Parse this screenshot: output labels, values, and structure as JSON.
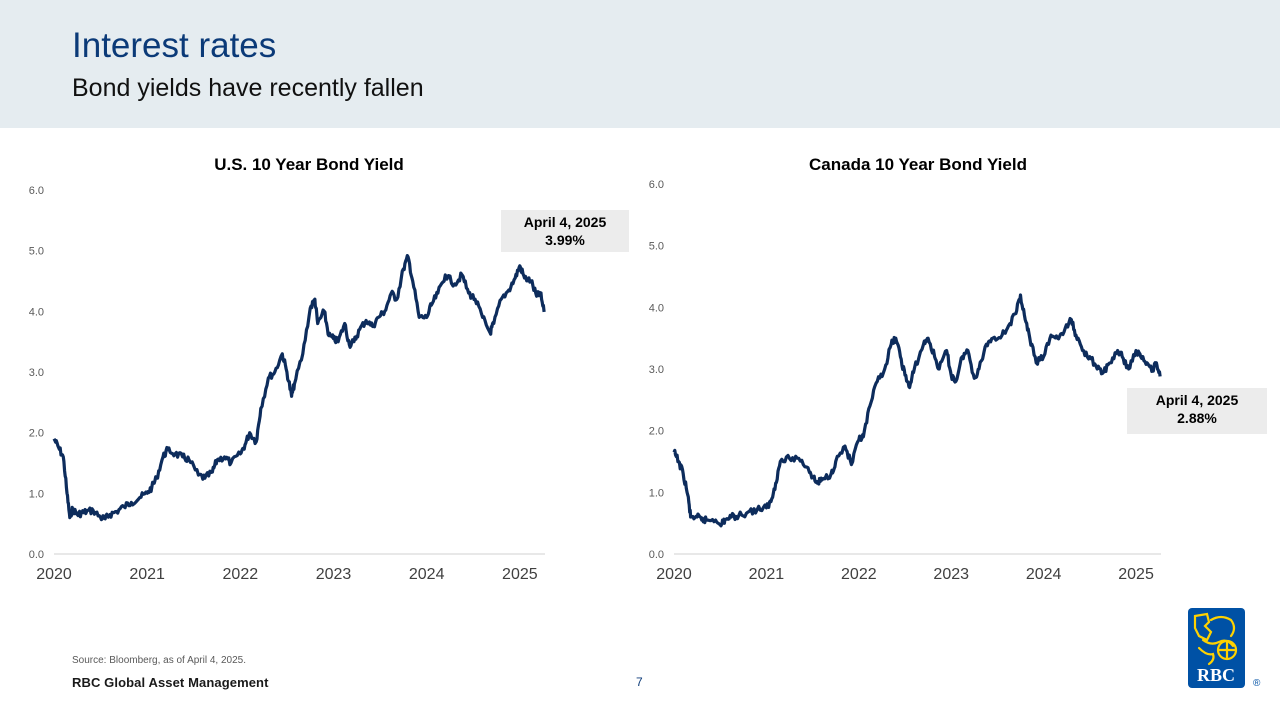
{
  "header": {
    "title": "Interest rates",
    "subtitle": "Bond yields have recently fallen"
  },
  "footer": {
    "source": "Source: Bloomberg, as of April 4, 2025.",
    "brand": "RBC Global Asset Management",
    "page_number": "7",
    "logo_text": "RBC",
    "logo_mark": "®"
  },
  "colors": {
    "header_bg": "#e5ecf0",
    "title": "#0b3a78",
    "series_line": "#0d2c5c",
    "callout_bg": "#ececec",
    "logo_blue": "#0051a5",
    "logo_gold": "#ffd200"
  },
  "chart_data": [
    {
      "type": "line",
      "title": "U.S. 10 Year Bond Yield",
      "xlabel": "",
      "ylabel": "",
      "ylim": [
        0,
        6
      ],
      "xlim": [
        2020.0,
        2025.27
      ],
      "yticks": [
        "0.0",
        "1.0",
        "2.0",
        "3.0",
        "4.0",
        "5.0",
        "6.0"
      ],
      "xticks": [
        "2020",
        "2021",
        "2022",
        "2023",
        "2024",
        "2025"
      ],
      "grid": false,
      "legend": "none",
      "annotation": {
        "date": "April 4, 2025",
        "value": "3.99%"
      },
      "series": [
        {
          "x": [
            2020.0,
            2020.05,
            2020.1,
            2020.14,
            2020.17,
            2020.2,
            2020.25,
            2020.3,
            2020.35,
            2020.42,
            2020.5,
            2020.55,
            2020.6,
            2020.67,
            2020.75,
            2020.83,
            2020.92,
            2021.0,
            2021.05,
            2021.1,
            2021.17,
            2021.22,
            2021.3,
            2021.38,
            2021.45,
            2021.55,
            2021.62,
            2021.7,
            2021.75,
            2021.83,
            2021.9,
            2022.0,
            2022.05,
            2022.1,
            2022.17,
            2022.22,
            2022.3,
            2022.37,
            2022.45,
            2022.5,
            2022.55,
            2022.58,
            2022.67,
            2022.75,
            2022.8,
            2022.83,
            2022.9,
            2022.95,
            2023.0,
            2023.05,
            2023.12,
            2023.17,
            2023.22,
            2023.28,
            2023.35,
            2023.42,
            2023.48,
            2023.55,
            2023.62,
            2023.68,
            2023.75,
            2023.8,
            2023.85,
            2023.92,
            2024.0,
            2024.05,
            2024.12,
            2024.2,
            2024.3,
            2024.38,
            2024.45,
            2024.52,
            2024.6,
            2024.68,
            2024.72,
            2024.8,
            2024.88,
            2024.95,
            2025.0,
            2025.05,
            2025.12,
            2025.18,
            2025.22,
            2025.26
          ],
          "y": [
            1.9,
            1.75,
            1.6,
            1.0,
            0.6,
            0.75,
            0.65,
            0.68,
            0.7,
            0.72,
            0.6,
            0.58,
            0.65,
            0.7,
            0.78,
            0.85,
            0.93,
            1.0,
            1.1,
            1.25,
            1.6,
            1.72,
            1.65,
            1.6,
            1.55,
            1.3,
            1.25,
            1.35,
            1.55,
            1.6,
            1.5,
            1.65,
            1.8,
            2.0,
            1.85,
            2.4,
            2.9,
            3.0,
            3.3,
            3.0,
            2.6,
            2.8,
            3.3,
            4.05,
            4.2,
            3.8,
            4.0,
            3.6,
            3.55,
            3.5,
            3.8,
            3.45,
            3.5,
            3.7,
            3.85,
            3.75,
            3.9,
            4.0,
            4.3,
            4.2,
            4.7,
            4.9,
            4.5,
            3.9,
            3.9,
            4.1,
            4.3,
            4.6,
            4.45,
            4.6,
            4.3,
            4.2,
            3.9,
            3.65,
            3.8,
            4.2,
            4.35,
            4.55,
            4.75,
            4.55,
            4.5,
            4.25,
            4.3,
            3.99
          ]
        }
      ]
    },
    {
      "type": "line",
      "title": "Canada 10 Year Bond Yield",
      "xlabel": "",
      "ylabel": "",
      "ylim": [
        0,
        6
      ],
      "xlim": [
        2020.0,
        2025.27
      ],
      "yticks": [
        "0.0",
        "1.0",
        "2.0",
        "3.0",
        "4.0",
        "5.0",
        "6.0"
      ],
      "xticks": [
        "2020",
        "2021",
        "2022",
        "2023",
        "2024",
        "2025"
      ],
      "grid": false,
      "legend": "none",
      "annotation": {
        "date": "April 4, 2025",
        "value": "2.88%"
      },
      "series": [
        {
          "x": [
            2020.0,
            2020.05,
            2020.1,
            2020.15,
            2020.18,
            2020.25,
            2020.3,
            2020.35,
            2020.45,
            2020.52,
            2020.55,
            2020.62,
            2020.7,
            2020.8,
            2020.9,
            2021.0,
            2021.05,
            2021.1,
            2021.15,
            2021.25,
            2021.35,
            2021.45,
            2021.5,
            2021.55,
            2021.6,
            2021.7,
            2021.75,
            2021.85,
            2021.92,
            2022.0,
            2022.05,
            2022.12,
            2022.2,
            2022.28,
            2022.35,
            2022.4,
            2022.45,
            2022.5,
            2022.55,
            2022.6,
            2022.7,
            2022.75,
            2022.82,
            2022.87,
            2022.95,
            2023.0,
            2023.05,
            2023.12,
            2023.18,
            2023.25,
            2023.3,
            2023.38,
            2023.45,
            2023.55,
            2023.62,
            2023.7,
            2023.75,
            2023.8,
            2023.85,
            2023.92,
            2024.0,
            2024.08,
            2024.15,
            2024.22,
            2024.3,
            2024.35,
            2024.42,
            2024.5,
            2024.58,
            2024.65,
            2024.72,
            2024.8,
            2024.85,
            2024.92,
            2025.0,
            2025.05,
            2025.12,
            2025.18,
            2025.22,
            2025.26
          ],
          "y": [
            1.65,
            1.5,
            1.3,
            0.95,
            0.6,
            0.6,
            0.55,
            0.55,
            0.55,
            0.5,
            0.55,
            0.6,
            0.62,
            0.68,
            0.72,
            0.75,
            0.85,
            1.15,
            1.5,
            1.55,
            1.55,
            1.4,
            1.25,
            1.15,
            1.2,
            1.3,
            1.5,
            1.75,
            1.45,
            1.85,
            1.9,
            2.4,
            2.8,
            3.0,
            3.4,
            3.5,
            3.2,
            2.9,
            2.7,
            3.0,
            3.4,
            3.5,
            3.2,
            3.0,
            3.3,
            2.9,
            2.8,
            3.2,
            3.3,
            2.85,
            3.0,
            3.4,
            3.5,
            3.55,
            3.7,
            3.9,
            4.2,
            3.8,
            3.5,
            3.1,
            3.2,
            3.55,
            3.5,
            3.6,
            3.8,
            3.55,
            3.3,
            3.2,
            3.0,
            2.95,
            3.1,
            3.3,
            3.2,
            3.0,
            3.3,
            3.2,
            3.1,
            3.0,
            3.1,
            2.88
          ]
        }
      ]
    }
  ]
}
